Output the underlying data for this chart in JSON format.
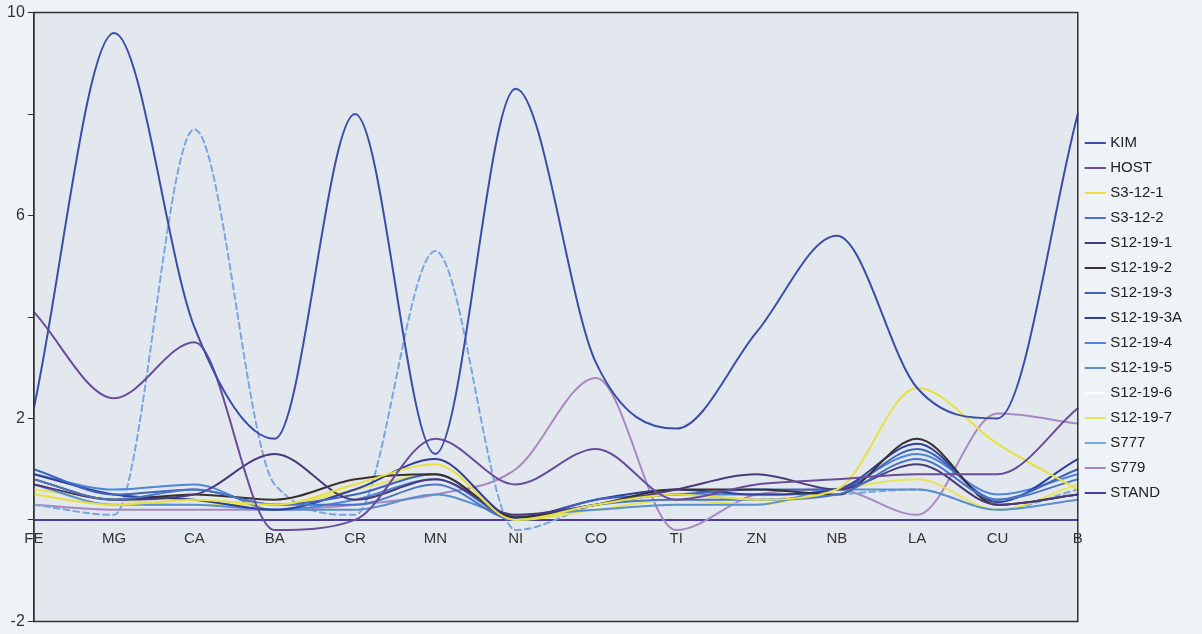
{
  "chart_data": {
    "type": "line",
    "categories": [
      "FE",
      "MG",
      "CA",
      "BA",
      "CR",
      "MN",
      "NI",
      "CO",
      "TI",
      "ZN",
      "NB",
      "LA",
      "CU",
      "B"
    ],
    "ylim": [
      -2,
      10
    ],
    "yticks": [
      -2,
      {
        "value": 0,
        "label": null
      },
      2,
      {
        "value": 4,
        "label": null
      },
      6,
      {
        "value": 8,
        "label": null
      },
      10
    ],
    "grid": false,
    "legend": "right",
    "marker": "none",
    "series": [
      {
        "name": "KIM",
        "color": "#3b4ea6",
        "values": [
          2.2,
          9.6,
          3.8,
          1.6,
          8.0,
          1.3,
          8.5,
          3.1,
          1.8,
          3.7,
          5.6,
          2.6,
          2.0,
          8.0
        ]
      },
      {
        "name": "HOST",
        "color": "#6a4c9c",
        "values": [
          4.1,
          2.4,
          3.5,
          -0.2,
          0.0,
          1.6,
          0.7,
          1.4,
          0.4,
          0.7,
          0.8,
          0.9,
          0.9,
          2.2
        ]
      },
      {
        "name": "S3-12-1",
        "color": "#e6e040",
        "values": [
          0.5,
          0.3,
          0.4,
          0.3,
          0.7,
          1.1,
          0.0,
          0.3,
          0.5,
          0.4,
          0.6,
          2.6,
          1.5,
          0.6
        ]
      },
      {
        "name": "S3-12-2",
        "color": "#4a74c8",
        "values": [
          0.8,
          0.4,
          0.6,
          0.3,
          0.3,
          0.7,
          0.0,
          0.3,
          0.4,
          0.4,
          0.5,
          1.2,
          0.4,
          0.8
        ]
      },
      {
        "name": "S12-19-1",
        "color": "#4a3a7a",
        "values": [
          0.7,
          0.4,
          0.5,
          1.3,
          0.4,
          0.8,
          0.1,
          0.3,
          0.6,
          0.9,
          0.6,
          1.1,
          0.3,
          0.5
        ]
      },
      {
        "name": "S12-19-2",
        "color": "#3a3030",
        "values": [
          0.8,
          0.4,
          0.5,
          0.4,
          0.8,
          0.9,
          0.05,
          0.3,
          0.6,
          0.6,
          0.5,
          1.6,
          0.3,
          0.5
        ]
      },
      {
        "name": "S12-19-3",
        "color": "#3f64c0",
        "values": [
          1.0,
          0.5,
          0.6,
          0.3,
          0.5,
          0.9,
          0.0,
          0.4,
          0.5,
          0.6,
          0.6,
          1.4,
          0.4,
          1.0
        ]
      },
      {
        "name": "S12-19-3A",
        "color": "#2e3f99",
        "values": [
          0.9,
          0.5,
          0.4,
          0.2,
          0.6,
          1.2,
          0.05,
          0.4,
          0.6,
          0.5,
          0.6,
          1.5,
          0.35,
          1.2
        ]
      },
      {
        "name": "S12-19-4",
        "color": "#4f86d8",
        "values": [
          0.9,
          0.6,
          0.7,
          0.2,
          0.4,
          0.8,
          0.05,
          0.3,
          0.5,
          0.5,
          0.6,
          1.3,
          0.5,
          0.9
        ]
      },
      {
        "name": "S12-19-5",
        "color": "#5a8fd0",
        "values": [
          0.7,
          0.3,
          0.3,
          0.2,
          0.2,
          0.5,
          0.1,
          0.2,
          0.3,
          0.3,
          0.6,
          0.6,
          0.2,
          0.4
        ]
      },
      {
        "name": "S12-19-6",
        "color": "#ffffff",
        "values": [
          null,
          null,
          null,
          null,
          null,
          null,
          null,
          null,
          null,
          null,
          null,
          null,
          null,
          null
        ]
      },
      {
        "name": "S12-19-7",
        "color": "#e8e458",
        "values": [
          0.6,
          0.4,
          0.3,
          0.3,
          0.6,
          0.9,
          0.0,
          0.2,
          0.4,
          0.3,
          0.6,
          0.8,
          0.2,
          0.7
        ]
      },
      {
        "name": "S777",
        "color": "#7aa6e0",
        "line_style": "dashed",
        "values": [
          0.3,
          0.1,
          7.7,
          0.7,
          0.1,
          5.3,
          -0.2,
          0.3,
          0.5,
          0.4,
          0.5,
          0.6,
          0.2,
          0.6
        ]
      },
      {
        "name": "S779",
        "color": "#a888c0",
        "values": [
          0.3,
          0.2,
          0.2,
          0.2,
          0.3,
          0.5,
          1.0,
          2.8,
          -0.2,
          0.5,
          0.6,
          0.1,
          2.1,
          1.9
        ]
      },
      {
        "name": "STAND",
        "color": "#4b3c9e",
        "values": [
          0,
          0,
          0,
          0,
          0,
          0,
          0,
          0,
          0,
          0,
          0,
          0,
          0,
          0
        ]
      }
    ]
  }
}
